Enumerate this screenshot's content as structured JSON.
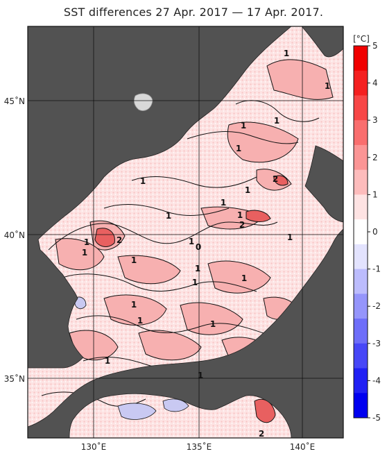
{
  "title": "SST differences 27 Apr. 2017 — 17 Apr. 2017.",
  "colorbar": {
    "unit": "[°C]",
    "ticks": [
      "5",
      "4",
      "3",
      "2",
      "1",
      "0",
      "-1",
      "-2",
      "-3",
      "-4",
      "-5"
    ],
    "colors": [
      "#f00000",
      "#f42020",
      "#f74747",
      "#f96e6e",
      "#fb9595",
      "#fdbcbc",
      "#fee3e3",
      "#ffffff",
      "#e3e3fe",
      "#bcbcfd",
      "#9595fb",
      "#6e6ef9",
      "#4747f7",
      "#2020f4",
      "#0000f0"
    ]
  },
  "axes": {
    "lat_labels": [
      "45˚N",
      "40˚N",
      "35˚N"
    ],
    "lon_labels": [
      "130˚E",
      "135˚E",
      "140˚E"
    ]
  },
  "colors": {
    "land": "#525252",
    "sea_pos_light": "#fde2e2",
    "sea_pos_mid": "#f7aeae",
    "sea_neg": "#c9c9f2"
  },
  "contour_labels": [
    "1",
    "1",
    "1",
    "1",
    "1",
    "1",
    "1",
    "1",
    "2",
    "1",
    "1",
    "2",
    "1",
    "1",
    "2",
    "1",
    "1",
    "1",
    "0",
    "1",
    "1",
    "1",
    "1",
    "1",
    "1",
    "1",
    "1",
    "2"
  ]
}
